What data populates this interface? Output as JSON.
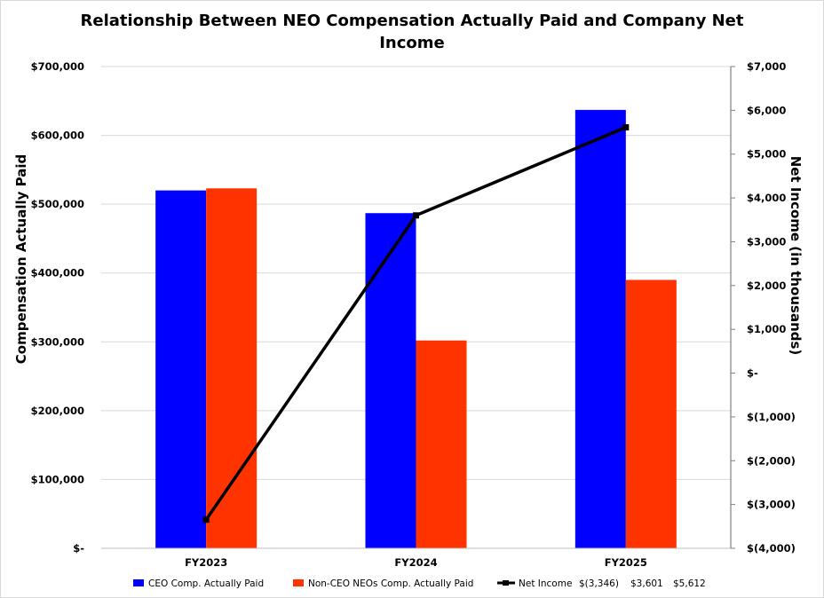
{
  "chart_data": {
    "type": "bar",
    "title_lines": [
      "Relationship Between NEO Compensation Actually Paid and Company Net",
      "Income"
    ],
    "categories": [
      "FY2023",
      "FY2024",
      "FY2025"
    ],
    "series": [
      {
        "name": "CEO Comp. Actually Paid",
        "type": "bar",
        "axis": "left",
        "color": "#0000FF",
        "values": [
          520000,
          487000,
          637000
        ]
      },
      {
        "name": "Non-CEO NEOs Comp. Actually Paid",
        "type": "bar",
        "axis": "left",
        "color": "#FF3300",
        "values": [
          523000,
          302000,
          390000
        ]
      },
      {
        "name": "Net Income",
        "type": "line",
        "axis": "right",
        "color": "#000000",
        "values": [
          -3346,
          3601,
          5612
        ]
      }
    ],
    "ylabel_left": "Compensation Actually Paid",
    "ylabel_right": "Net Income (in thousands)",
    "ylim_left": [
      0,
      700000
    ],
    "ylim_right": [
      -4000,
      7000
    ],
    "yticks_left": [
      "$-",
      "$100,000",
      "$200,000",
      "$300,000",
      "$400,000",
      "$500,000",
      "$600,000",
      "$700,000"
    ],
    "yticks_right": [
      "$(4,000)",
      "$(3,000)",
      "$(2,000)",
      "$(1,000)",
      "$-",
      "$1,000",
      "$2,000",
      "$3,000",
      "$4,000",
      "$5,000",
      "$6,000",
      "$7,000"
    ],
    "legend_net_income_labels": [
      "$(3,346)",
      "$3,601",
      "$5,612"
    ],
    "grid": true,
    "legend_position": "bottom"
  }
}
